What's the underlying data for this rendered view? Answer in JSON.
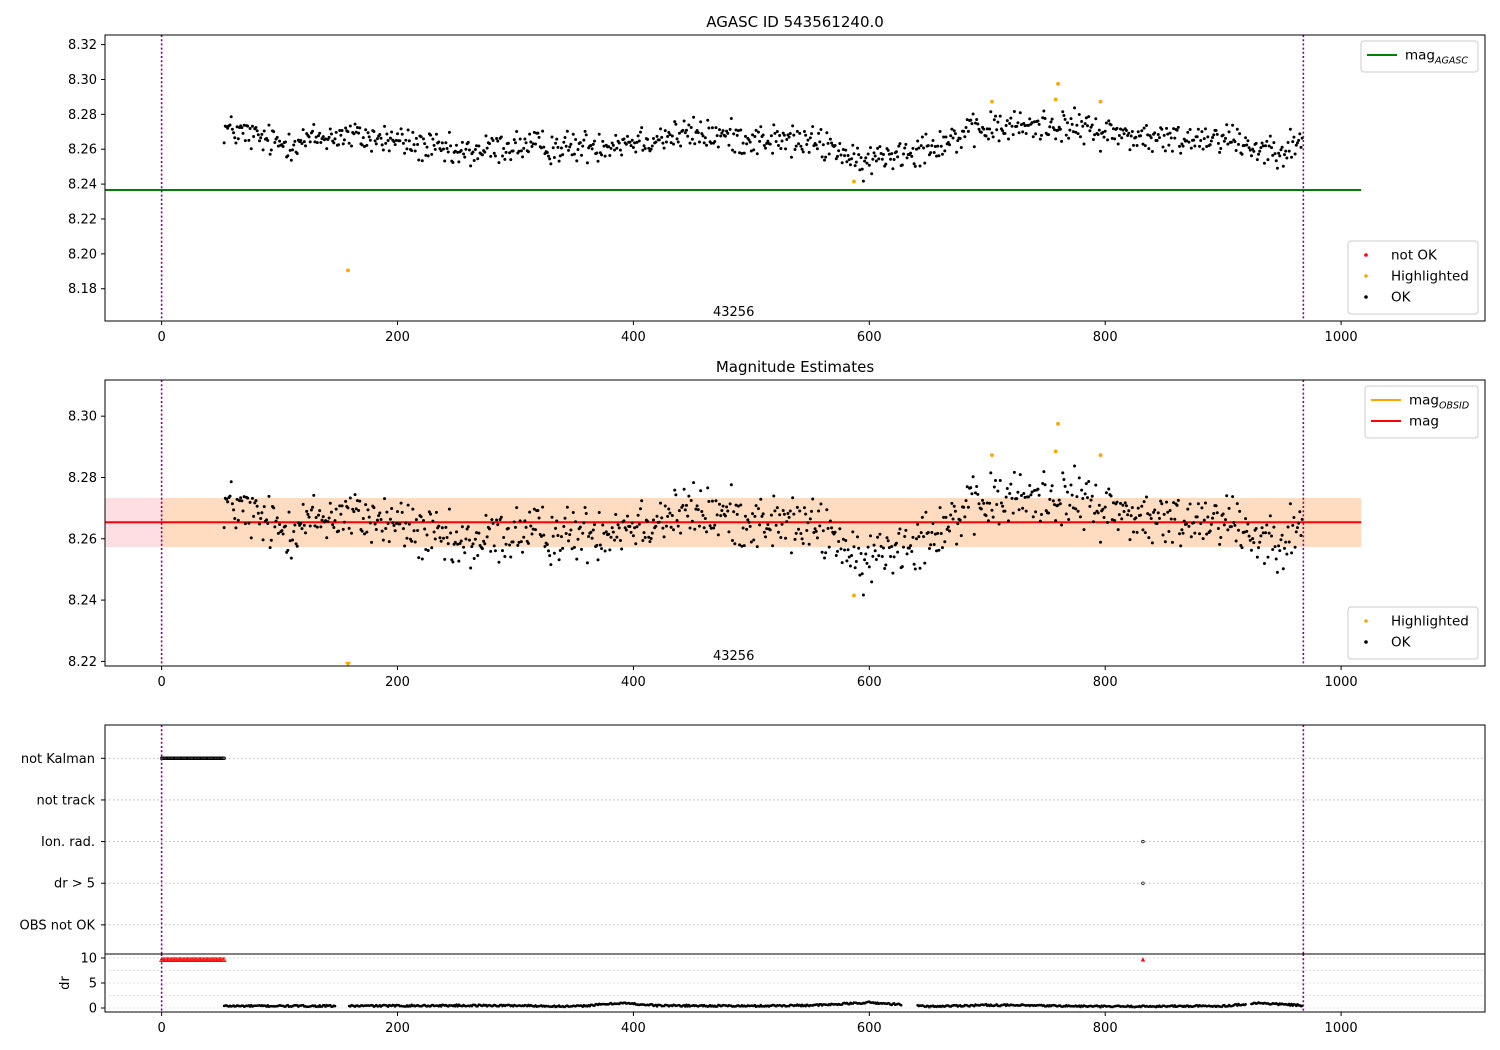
{
  "colors": {
    "ok": "#000000",
    "highlighted": "#ffa500",
    "not_ok": "#ff0000",
    "mag_agasc": "#008000",
    "mag_obsid": "#ffa500",
    "mag": "#ff0000",
    "band_outer": "#ffb6c1",
    "band_inner": "#ffdab9",
    "vline": "#800080",
    "grid": "#b0b0b0"
  },
  "chart_data": [
    {
      "type": "scatter",
      "title": "AGASC ID 543561240.0",
      "xlim": [
        -48,
        1122
      ],
      "ylim": [
        8.1615,
        8.3255
      ],
      "xticks": [
        0,
        200,
        400,
        600,
        800,
        1000
      ],
      "yticks": [
        8.18,
        8.2,
        8.22,
        8.24,
        8.26,
        8.28,
        8.3,
        8.32
      ],
      "x_tick_labels": [
        "0",
        "200",
        "400",
        "600",
        "800",
        "1000"
      ],
      "y_tick_labels": [
        "8.18",
        "8.20",
        "8.22",
        "8.24",
        "8.26",
        "8.28",
        "8.30",
        "8.32"
      ],
      "annotation": {
        "text": "43256",
        "x": 485,
        "y": 8.1645
      },
      "vlines": [
        0,
        968
      ],
      "hlines": [
        {
          "y": 8.2366,
          "x0": -48,
          "x1": 1017,
          "color": "mag_agasc",
          "name": "mag_AGASC"
        }
      ],
      "legends": [
        {
          "location": "upper right",
          "entries": [
            {
              "kind": "line",
              "label": "mag",
              "sub": "AGASC",
              "color": "mag_agasc"
            }
          ]
        },
        {
          "location": "lower right",
          "entries": [
            {
              "kind": "dot",
              "label": "not OK",
              "color": "not_ok"
            },
            {
              "kind": "dot",
              "label": "Highlighted",
              "color": "highlighted"
            },
            {
              "kind": "dot",
              "label": "OK",
              "color": "ok"
            }
          ]
        }
      ],
      "series": [
        {
          "name": "OK",
          "color": "ok",
          "kind": "noise",
          "x_range": [
            53,
            967
          ],
          "trend_x": [
            53,
            100,
            150,
            200,
            250,
            300,
            350,
            400,
            450,
            500,
            550,
            575,
            590,
            610,
            650,
            700,
            760,
            800,
            850,
            900,
            930,
            967
          ],
          "trend_y": [
            8.272,
            8.263,
            8.268,
            8.265,
            8.257,
            8.262,
            8.261,
            8.265,
            8.269,
            8.266,
            8.264,
            8.26,
            8.25,
            8.256,
            8.262,
            8.272,
            8.274,
            8.27,
            8.265,
            8.268,
            8.26,
            8.262
          ],
          "noise": 0.0065
        },
        {
          "name": "Highlighted",
          "color": "highlighted",
          "kind": "points",
          "x": [
            158,
            587,
            704,
            758,
            760,
            796
          ],
          "y": [
            8.1905,
            8.2415,
            8.2873,
            8.2885,
            8.2975,
            8.2873
          ]
        }
      ]
    },
    {
      "type": "scatter",
      "title": "Magnitude Estimates",
      "xlim": [
        -48,
        1122
      ],
      "ylim": [
        8.2185,
        8.3118
      ],
      "xticks": [
        0,
        200,
        400,
        600,
        800,
        1000
      ],
      "yticks": [
        8.22,
        8.24,
        8.26,
        8.28,
        8.3
      ],
      "x_tick_labels": [
        "0",
        "200",
        "400",
        "600",
        "800",
        "1000"
      ],
      "y_tick_labels": [
        "8.22",
        "8.24",
        "8.26",
        "8.28",
        "8.30"
      ],
      "annotation": {
        "text": "43256",
        "x": 485,
        "y": 8.2205
      },
      "vlines": [
        0,
        968
      ],
      "bands": [
        {
          "y0": 8.2573,
          "y1": 8.2733,
          "x0": -48,
          "x1": 1017,
          "color": "band_outer"
        },
        {
          "y0": 8.2573,
          "y1": 8.2733,
          "x0": 0,
          "x1": 1017,
          "color": "band_inner"
        }
      ],
      "hlines": [
        {
          "y": 8.2654,
          "x0": -48,
          "x1": 1017,
          "color": "mag",
          "name": "mag"
        }
      ],
      "legends": [
        {
          "location": "upper right",
          "entries": [
            {
              "kind": "line",
              "label": "mag",
              "sub": "OBSID",
              "color": "mag_obsid"
            },
            {
              "kind": "line",
              "label": "mag",
              "sub": "",
              "color": "mag"
            }
          ]
        },
        {
          "location": "lower right",
          "entries": [
            {
              "kind": "dot",
              "label": "Highlighted",
              "color": "highlighted"
            },
            {
              "kind": "dot",
              "label": "OK",
              "color": "ok"
            }
          ]
        }
      ],
      "series": [
        {
          "name": "OK",
          "color": "ok",
          "kind": "noise",
          "x_range": [
            53,
            967
          ],
          "trend_x": [
            53,
            100,
            150,
            200,
            250,
            300,
            350,
            400,
            450,
            500,
            550,
            575,
            590,
            610,
            650,
            700,
            760,
            800,
            850,
            900,
            930,
            967
          ],
          "trend_y": [
            8.272,
            8.263,
            8.268,
            8.265,
            8.257,
            8.262,
            8.261,
            8.265,
            8.269,
            8.266,
            8.264,
            8.26,
            8.25,
            8.256,
            8.262,
            8.272,
            8.274,
            8.27,
            8.265,
            8.268,
            8.26,
            8.262
          ],
          "noise": 0.0065
        },
        {
          "name": "Highlighted",
          "color": "highlighted",
          "kind": "points",
          "x": [
            587,
            704,
            758,
            760,
            796
          ],
          "y": [
            8.2415,
            8.2873,
            8.2885,
            8.2975,
            8.2873
          ]
        },
        {
          "name": "Highlighted (below range)",
          "color": "highlighted",
          "kind": "markers_down",
          "x": [
            158
          ],
          "y": [
            8.2192
          ]
        }
      ]
    },
    {
      "type": "scatter",
      "title": "",
      "xlim": [
        -48,
        1122
      ],
      "categories": [
        "not Kalman",
        "not track",
        "Ion. rad.",
        "dr > 5",
        "OBS not OK"
      ],
      "vlines": [
        0,
        968
      ],
      "grid": true,
      "series": [
        {
          "name": "not Kalman",
          "color": "ok",
          "kind": "row_range",
          "category": "not Kalman",
          "x_range": [
            0,
            53
          ]
        },
        {
          "name": "Ion. rad.",
          "color": "ok",
          "kind": "row_points",
          "category": "Ion. rad.",
          "x": [
            832
          ]
        },
        {
          "name": "dr > 5",
          "color": "ok",
          "kind": "row_points",
          "category": "dr > 5",
          "x": [
            832
          ]
        }
      ]
    },
    {
      "type": "scatter",
      "title": "",
      "ylabel": "dr",
      "xlim": [
        -48,
        1122
      ],
      "ylim": [
        -0.8,
        10.8
      ],
      "xticks": [
        0,
        200,
        400,
        600,
        800,
        1000
      ],
      "yticks": [
        0,
        5,
        10
      ],
      "x_tick_labels": [
        "0",
        "200",
        "400",
        "600",
        "800",
        "1000"
      ],
      "y_tick_labels": [
        "0",
        "5",
        "10"
      ],
      "vlines": [
        0,
        968
      ],
      "series": [
        {
          "name": "dr",
          "color": "ok",
          "kind": "drline",
          "x_range": [
            53,
            967
          ],
          "gaps": [
            [
              148,
              158
            ],
            [
              628,
              640
            ],
            [
              920,
              923
            ]
          ],
          "trend_x": [
            53,
            150,
            250,
            300,
            350,
            390,
            420,
            500,
            560,
            600,
            650,
            700,
            800,
            900,
            930,
            967
          ],
          "trend_y": [
            0.4,
            0.4,
            0.5,
            0.5,
            0.3,
            1.0,
            0.5,
            0.4,
            0.6,
            1.1,
            0.3,
            0.6,
            0.3,
            0.4,
            1.0,
            0.5
          ]
        },
        {
          "name": "dr not OK",
          "color": "not_ok",
          "kind": "row_range_values",
          "x_range": [
            0,
            53
          ],
          "y": 9.7
        },
        {
          "name": "dr not OK point",
          "color": "not_ok",
          "kind": "markers_up",
          "x": [
            832
          ],
          "y": [
            9.7
          ]
        }
      ]
    }
  ]
}
